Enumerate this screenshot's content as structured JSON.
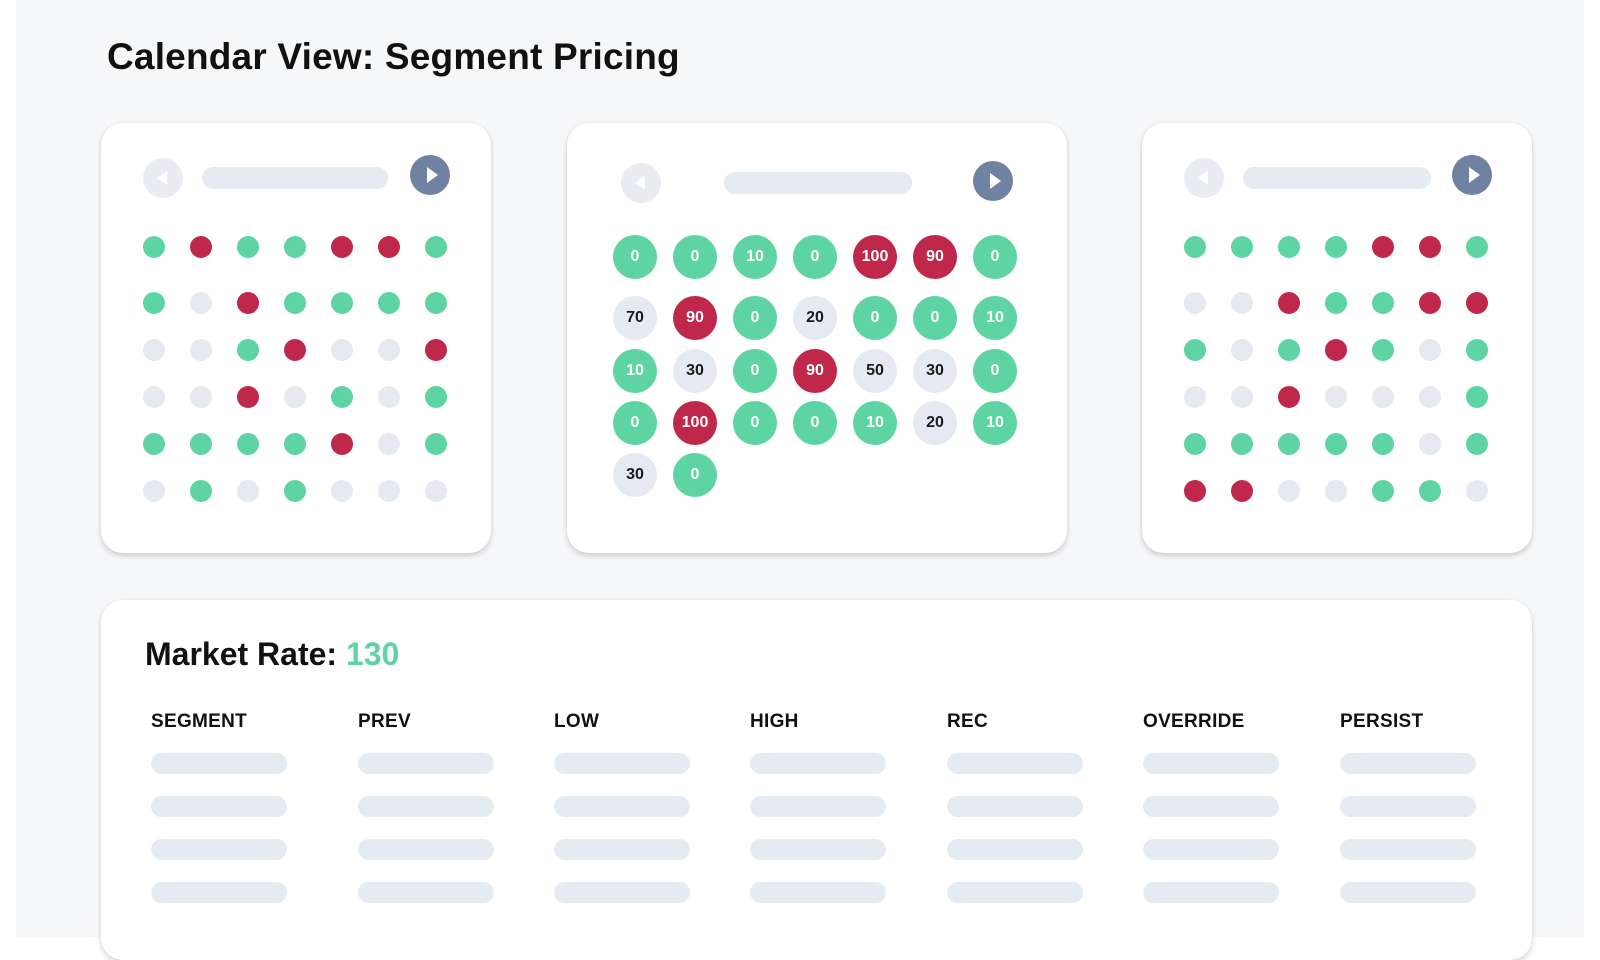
{
  "page": {
    "title": "Calendar View: Segment Pricing"
  },
  "calendars": {
    "left": {
      "rows": [
        [
          "g",
          "r",
          "g",
          "g",
          "r",
          "r",
          "g"
        ],
        [
          "g",
          "e",
          "r",
          "g",
          "g",
          "g",
          "g"
        ],
        [
          "e",
          "e",
          "g",
          "r",
          "e",
          "e",
          "r"
        ],
        [
          "e",
          "e",
          "r",
          "e",
          "g",
          "e",
          "g"
        ],
        [
          "g",
          "g",
          "g",
          "g",
          "r",
          "e",
          "g"
        ],
        [
          "e",
          "g",
          "e",
          "g",
          "e",
          "e",
          "e"
        ]
      ]
    },
    "center": {
      "cells": [
        [
          {
            "v": "0",
            "s": "g"
          },
          {
            "v": "0",
            "s": "g"
          },
          {
            "v": "10",
            "s": "g"
          },
          {
            "v": "0",
            "s": "g"
          },
          {
            "v": "100",
            "s": "r"
          },
          {
            "v": "90",
            "s": "r"
          },
          {
            "v": "0",
            "s": "g"
          }
        ],
        [
          {
            "v": "70",
            "s": "e"
          },
          {
            "v": "90",
            "s": "r"
          },
          {
            "v": "0",
            "s": "g"
          },
          {
            "v": "20",
            "s": "e"
          },
          {
            "v": "0",
            "s": "g"
          },
          {
            "v": "0",
            "s": "g"
          },
          {
            "v": "10",
            "s": "g"
          }
        ],
        [
          {
            "v": "10",
            "s": "g"
          },
          {
            "v": "30",
            "s": "e"
          },
          {
            "v": "0",
            "s": "g"
          },
          {
            "v": "90",
            "s": "r"
          },
          {
            "v": "50",
            "s": "e"
          },
          {
            "v": "30",
            "s": "e"
          },
          {
            "v": "0",
            "s": "g"
          }
        ],
        [
          {
            "v": "0",
            "s": "g"
          },
          {
            "v": "100",
            "s": "r"
          },
          {
            "v": "0",
            "s": "g"
          },
          {
            "v": "0",
            "s": "g"
          },
          {
            "v": "10",
            "s": "g"
          },
          {
            "v": "20",
            "s": "e"
          },
          {
            "v": "10",
            "s": "g"
          }
        ],
        [
          {
            "v": "30",
            "s": "e"
          },
          {
            "v": "0",
            "s": "g"
          }
        ]
      ]
    },
    "right": {
      "rows": [
        [
          "g",
          "g",
          "g",
          "g",
          "r",
          "r",
          "g"
        ],
        [
          "e",
          "e",
          "r",
          "g",
          "g",
          "r",
          "r"
        ],
        [
          "g",
          "e",
          "g",
          "r",
          "g",
          "e",
          "g"
        ],
        [
          "e",
          "e",
          "r",
          "e",
          "e",
          "e",
          "g"
        ],
        [
          "g",
          "g",
          "g",
          "g",
          "g",
          "e",
          "g"
        ],
        [
          "r",
          "r",
          "e",
          "e",
          "g",
          "g",
          "e"
        ]
      ]
    }
  },
  "market_rate": {
    "label": "Market Rate:",
    "value": "130"
  },
  "table": {
    "columns": [
      "SEGMENT",
      "PREV",
      "LOW",
      "HIGH",
      "REC",
      "OVERRIDE",
      "PERSIST"
    ],
    "row_count": 4
  },
  "colors": {
    "available": "#5dd4a2",
    "sold_out": "#c0284b",
    "neutral": "#e4e9f2",
    "nav_active": "#6f82a1",
    "nav_inactive": "#e9edf2",
    "placeholder": "#e5ebf3"
  },
  "icons": {
    "prev": "triangle-left",
    "next": "triangle-right"
  }
}
